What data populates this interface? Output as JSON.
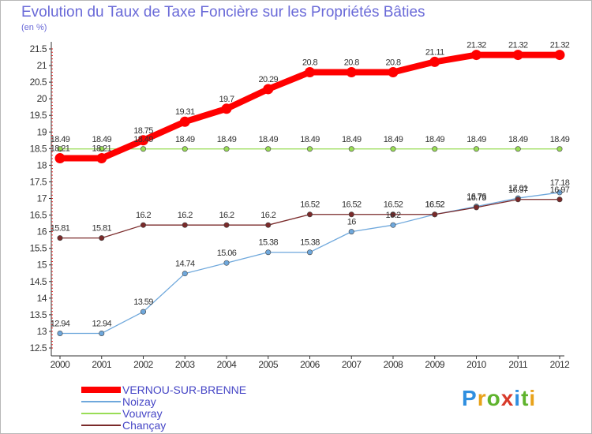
{
  "chart_data": {
    "type": "line",
    "title": "Evolution du Taux de Taxe Foncière sur les Propriétés Bâties",
    "ylabel": "(en %)",
    "xlabel": "",
    "categories": [
      "2000",
      "2001",
      "2002",
      "2003",
      "2004",
      "2005",
      "2006",
      "2007",
      "2008",
      "2009",
      "2010",
      "2011",
      "2012"
    ],
    "ylim": [
      12.5,
      21.5
    ],
    "yticks": [
      "12.5",
      "13",
      "13.5",
      "14",
      "14.5",
      "15",
      "15.5",
      "16",
      "16.5",
      "17",
      "17.5",
      "18",
      "18.5",
      "19",
      "19.5",
      "20",
      "20.5",
      "21",
      "21.5"
    ],
    "grid": false,
    "legend_position": "bottom-left",
    "series": [
      {
        "name": "VERNOU-SUR-BRENNE",
        "color": "#ff0000",
        "emphasis": true,
        "values": [
          18.21,
          18.21,
          18.75,
          19.31,
          19.7,
          20.29,
          20.8,
          20.8,
          20.8,
          21.11,
          21.32,
          21.32,
          21.32
        ],
        "labels": [
          "18.21",
          "18.21",
          "18.75",
          "19.31",
          "19.7",
          "20.29",
          "20.8",
          "20.8",
          "20.8",
          "21.11",
          "21.32",
          "21.32",
          "21.32"
        ]
      },
      {
        "name": "Noizay",
        "color": "#6fa8dc",
        "values": [
          12.94,
          12.94,
          13.59,
          14.74,
          15.06,
          15.38,
          15.38,
          16,
          16.2,
          16.52,
          16.76,
          17.01,
          17.18
        ],
        "labels": [
          "12.94",
          "12.94",
          "13.59",
          "14.74",
          "15.06",
          "15.38",
          "15.38",
          "16",
          "16.2",
          "16.52",
          "16.76",
          "17.01",
          "17.18"
        ]
      },
      {
        "name": "Vouvray",
        "color": "#99dd55",
        "values": [
          18.49,
          18.49,
          18.49,
          18.49,
          18.49,
          18.49,
          18.49,
          18.49,
          18.49,
          18.49,
          18.49,
          18.49,
          18.49
        ],
        "labels": [
          "18.49",
          "18.49",
          "18.49",
          "18.49",
          "18.49",
          "18.49",
          "18.49",
          "18.49",
          "18.49",
          "18.49",
          "18.49",
          "18.49",
          "18.49"
        ]
      },
      {
        "name": "Chançay",
        "color": "#7a2a2a",
        "values": [
          15.81,
          15.81,
          16.2,
          16.2,
          16.2,
          16.2,
          16.52,
          16.52,
          16.52,
          16.52,
          16.73,
          16.97,
          16.97
        ],
        "labels": [
          "15.81",
          "15.81",
          "16.2",
          "16.2",
          "16.2",
          "16.2",
          "16.52",
          "16.52",
          "16.52",
          "16.52",
          "16.73",
          "16.97",
          "16.97"
        ]
      }
    ]
  },
  "logo": {
    "text": "Proxiti",
    "parts": [
      "P",
      "r",
      "o",
      "x",
      "i",
      "t",
      "i"
    ]
  }
}
